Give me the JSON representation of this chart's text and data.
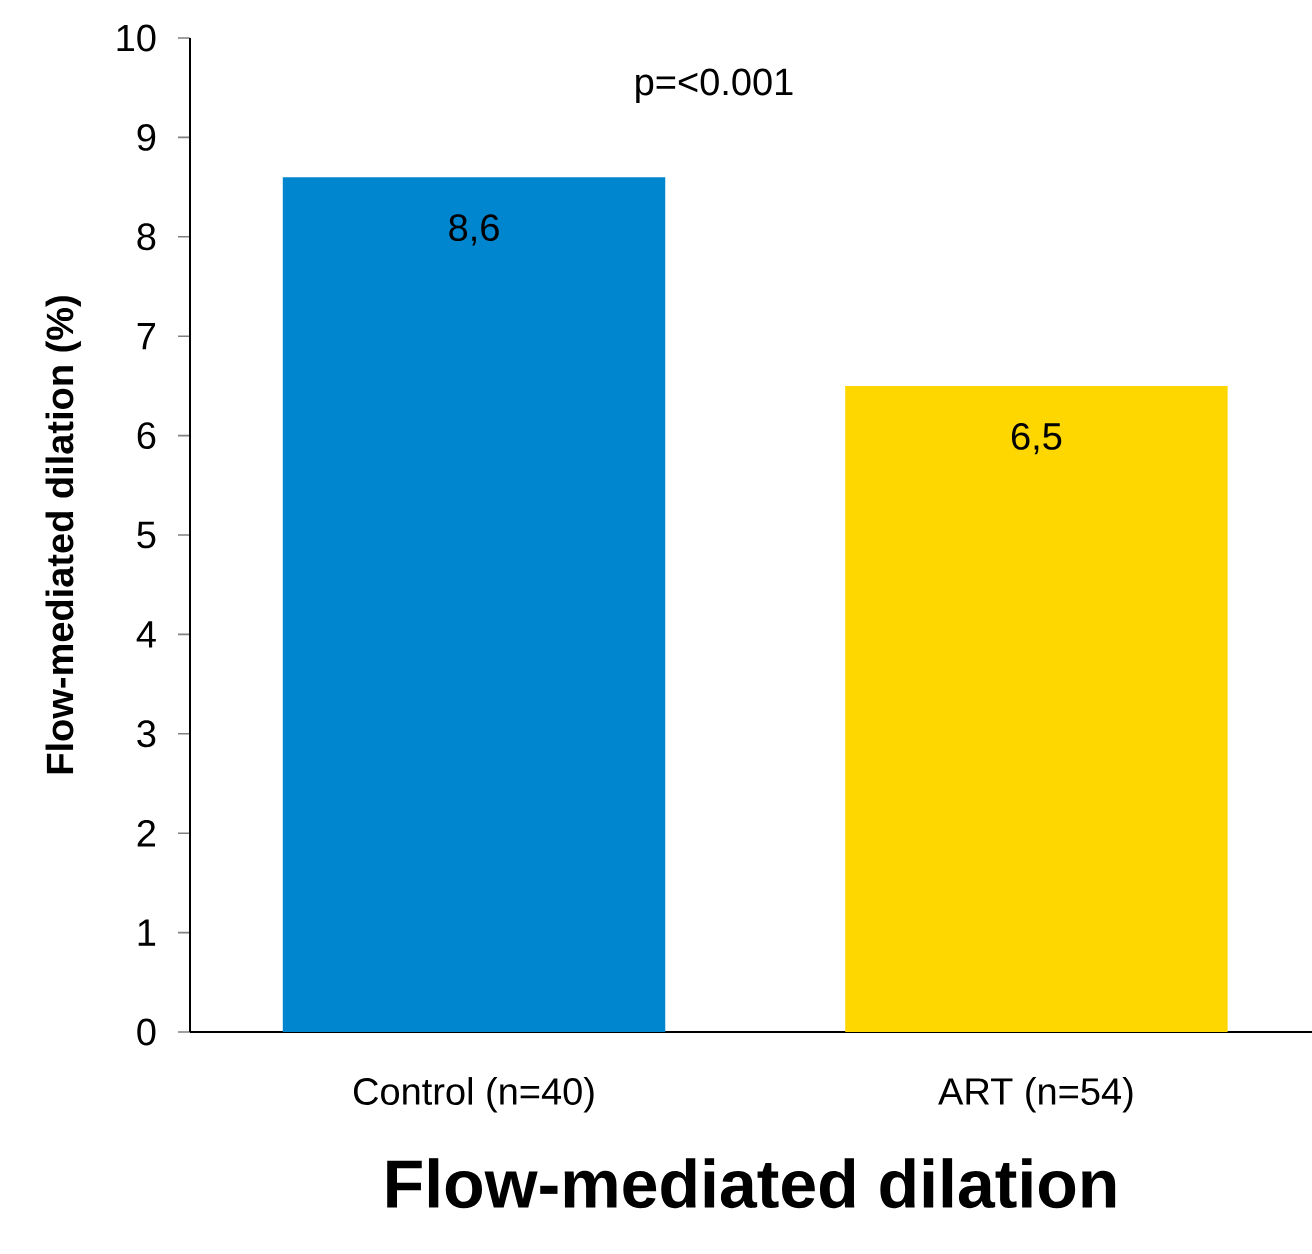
{
  "chart_data": {
    "type": "bar",
    "xlabel": "Flow-mediated dilation",
    "ylabel": "Flow-mediated dilation (%)",
    "categories": [
      "Control (n=40)",
      "ART (n=54)"
    ],
    "values": [
      8.6,
      6.5
    ],
    "colors": [
      "#0085cf",
      "#fed700"
    ],
    "value_labels": [
      "8,6",
      "6,5"
    ],
    "ylim": [
      0,
      10
    ],
    "yticks": [
      0,
      1,
      2,
      3,
      4,
      5,
      6,
      7,
      8,
      9,
      10
    ],
    "grid": false,
    "annotations": [
      "p=<0.001"
    ]
  }
}
